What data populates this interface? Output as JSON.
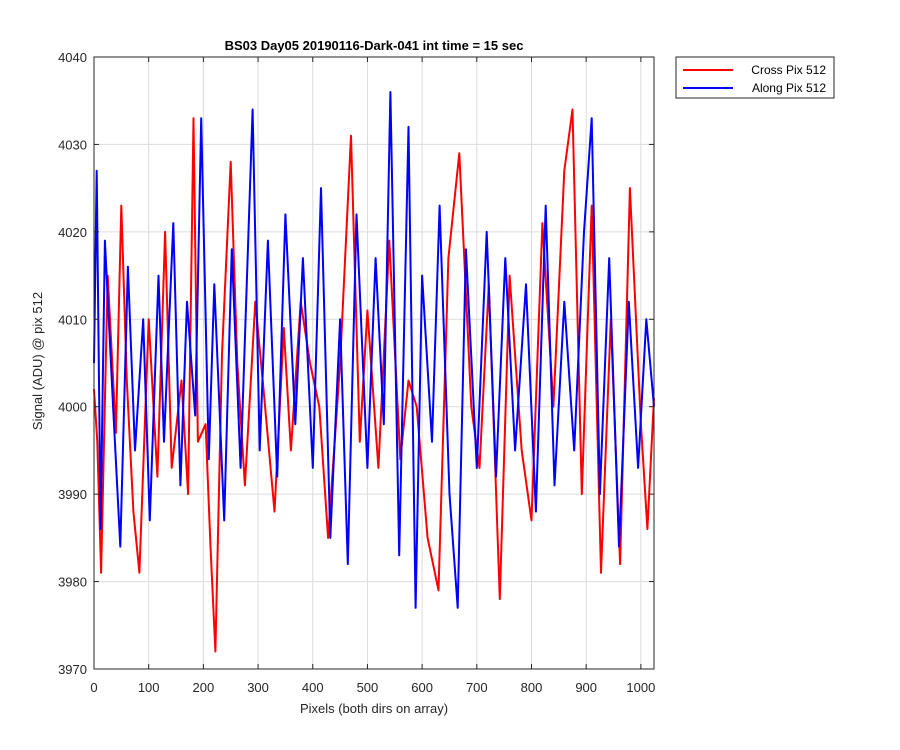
{
  "chart_data": {
    "type": "line",
    "title": "BS03 Day05 20190116-Dark-041 int time = 15 sec",
    "xlabel": "Pixels (both dirs on array)",
    "ylabel": "Signal (ADU) @ pix 512",
    "xlim": [
      0,
      1024
    ],
    "ylim": [
      3970,
      4040
    ],
    "x_ticks": [
      0,
      100,
      200,
      300,
      400,
      500,
      600,
      700,
      800,
      900,
      1000
    ],
    "y_ticks": [
      3970,
      3980,
      3990,
      4000,
      4010,
      4020,
      4030,
      4040
    ],
    "grid": true,
    "legend_position": "outside top-right",
    "series": [
      {
        "name": "Cross Pix 512",
        "color": "#ff0000",
        "x": [
          0,
          6,
          13,
          25,
          40,
          50,
          60,
          72,
          83,
          100,
          116,
          130,
          142,
          160,
          172,
          182,
          190,
          204,
          213,
          222,
          234,
          250,
          262,
          276,
          295,
          310,
          330,
          347,
          360,
          378,
          395,
          412,
          428,
          450,
          470,
          486,
          500,
          520,
          540,
          560,
          575,
          590,
          610,
          630,
          648,
          668,
          690,
          705,
          722,
          742,
          760,
          782,
          800,
          820,
          840,
          860,
          875,
          892,
          910,
          927,
          945,
          962,
          980,
          1000,
          1012,
          1024
        ],
        "values": [
          4002,
          3996,
          3981,
          4015,
          3997,
          4023,
          4003,
          3988,
          3981,
          4010,
          3992,
          4020,
          3993,
          4003,
          3990,
          4033,
          3996,
          3998,
          3984,
          3972,
          4006,
          4028,
          4005,
          3991,
          4012,
          4002,
          3988,
          4009,
          3995,
          4012,
          4005,
          4000,
          3985,
          4005,
          4031,
          3996,
          4011,
          3993,
          4019,
          3994,
          4003,
          4000,
          3985,
          3979,
          4017,
          4029,
          4000,
          3993,
          4014,
          3978,
          4015,
          3995,
          3987,
          4021,
          4000,
          4027,
          4034,
          3990,
          4023,
          3981,
          4010,
          3982,
          4025,
          3998,
          3986,
          4001
        ]
      },
      {
        "name": "Along Pix 512",
        "color": "#0000ff",
        "x": [
          0,
          5,
          12,
          20,
          35,
          48,
          62,
          75,
          90,
          102,
          118,
          128,
          145,
          158,
          170,
          185,
          196,
          210,
          220,
          238,
          252,
          268,
          290,
          303,
          318,
          335,
          350,
          368,
          382,
          400,
          415,
          432,
          450,
          464,
          480,
          500,
          515,
          530,
          542,
          558,
          575,
          588,
          600,
          618,
          632,
          650,
          665,
          680,
          700,
          718,
          735,
          752,
          770,
          790,
          808,
          826,
          842,
          860,
          878,
          896,
          910,
          925,
          942,
          960,
          978,
          995,
          1010,
          1024
        ],
        "values": [
          4005,
          4027,
          3986,
          4019,
          4000,
          3984,
          4016,
          3995,
          4010,
          3987,
          4015,
          3996,
          4021,
          3991,
          4012,
          3999,
          4033,
          3994,
          4014,
          3987,
          4018,
          3993,
          4034,
          3995,
          4019,
          3992,
          4022,
          3998,
          4017,
          3993,
          4025,
          3985,
          4010,
          3982,
          4022,
          3993,
          4017,
          3998,
          4036,
          3983,
          4032,
          3977,
          4015,
          3996,
          4023,
          3990,
          3977,
          4018,
          3993,
          4020,
          3992,
          4017,
          3995,
          4014,
          3988,
          4023,
          3991,
          4012,
          3995,
          4020,
          4033,
          3990,
          4017,
          3984,
          4012,
          3993,
          4010,
          4000
        ]
      }
    ]
  }
}
